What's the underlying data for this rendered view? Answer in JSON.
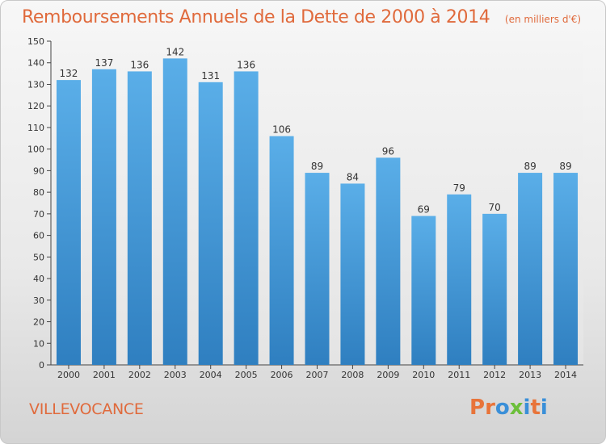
{
  "header": {
    "title": "Remboursements Annuels de la Dette de 2000 à 2014",
    "subtitle": "(en milliers d'€)"
  },
  "footer": {
    "commune": "VILLEVOCANCE",
    "logo_text": "Proxiti"
  },
  "colors": {
    "title": "#e06a3c",
    "bar_top": "#5aaee8",
    "bar_bottom": "#2f7fc0",
    "logo": [
      "#e8743a",
      "#e8743a",
      "#3a8fd8",
      "#6cbf3a",
      "#3a8fd8",
      "#e8743a",
      "#3a8fd8"
    ]
  },
  "chart_data": {
    "type": "bar",
    "title": "Remboursements Annuels de la Dette de 2000 à 2014",
    "categories": [
      "2000",
      "2001",
      "2002",
      "2003",
      "2004",
      "2005",
      "2006",
      "2007",
      "2008",
      "2009",
      "2010",
      "2011",
      "2012",
      "2013",
      "2014"
    ],
    "values": [
      132,
      137,
      136,
      142,
      131,
      136,
      106,
      89,
      84,
      96,
      69,
      79,
      70,
      89,
      89
    ],
    "ylim": [
      0,
      150
    ],
    "yticks": [
      0,
      10,
      20,
      30,
      40,
      50,
      60,
      70,
      80,
      90,
      100,
      110,
      120,
      130,
      140,
      150
    ],
    "grid": false,
    "data_labels": true
  }
}
